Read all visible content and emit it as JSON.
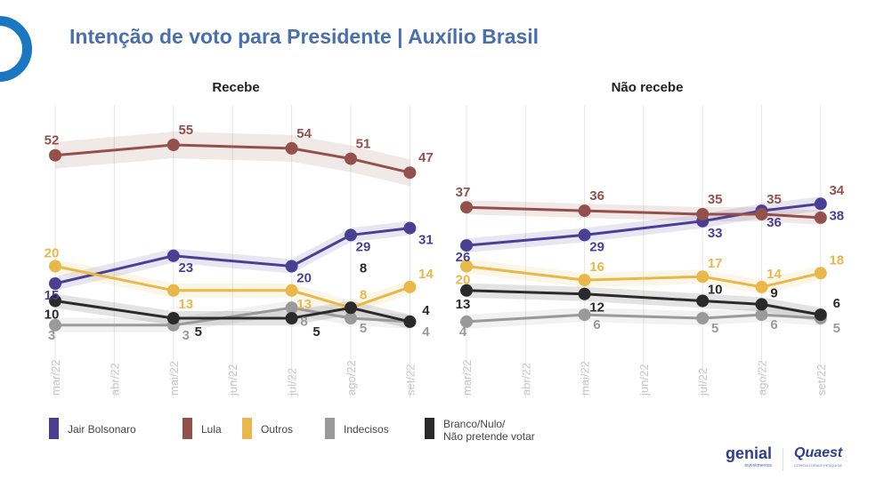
{
  "title": "Intenção de voto para Presidente | Auxílio Brasil",
  "chart_data": [
    {
      "type": "line",
      "title": "Recebe",
      "x_ticks": [
        "mar/22",
        "abr/22",
        "mai/22",
        "jun/22",
        "jul/22",
        "ago/22",
        "set/22"
      ],
      "x": [
        "mar/22",
        "mai/22",
        "jul/22",
        "ago/22",
        "set/22"
      ],
      "grid": true,
      "series": [
        {
          "name": "Jair Bolsonaro",
          "color": "#4b3f94",
          "values": [
            15,
            23,
            20,
            29,
            31
          ]
        },
        {
          "name": "Lula",
          "color": "#94514b",
          "values": [
            52,
            55,
            54,
            51,
            47
          ]
        },
        {
          "name": "Outros",
          "color": "#e8b84a",
          "values": [
            20,
            13,
            13,
            8,
            14
          ]
        },
        {
          "name": "Indecisos",
          "color": "#9a9a9a",
          "values": [
            3,
            3,
            8,
            5,
            4
          ]
        },
        {
          "name": "Branco/Nulo/ Não pretende votar",
          "color": "#2a2a2a",
          "values": [
            10,
            5,
            5,
            8,
            4
          ]
        }
      ]
    },
    {
      "type": "line",
      "title": "Não recebe",
      "x_ticks": [
        "mar/22",
        "abr/22",
        "mai/22",
        "jun/22",
        "jul/22",
        "ago/22",
        "set/22"
      ],
      "x": [
        "mar/22",
        "mai/22",
        "jul/22",
        "ago/22",
        "set/22"
      ],
      "grid": true,
      "series": [
        {
          "name": "Jair Bolsonaro",
          "color": "#4b3f94",
          "values": [
            26,
            29,
            33,
            36,
            38
          ]
        },
        {
          "name": "Lula",
          "color": "#94514b",
          "values": [
            37,
            36,
            35,
            35,
            34
          ]
        },
        {
          "name": "Outros",
          "color": "#e8b84a",
          "values": [
            20,
            16,
            17,
            14,
            18
          ]
        },
        {
          "name": "Indecisos",
          "color": "#9a9a9a",
          "values": [
            4,
            6,
            5,
            6,
            5
          ]
        },
        {
          "name": "Branco/Nulo/ Não pretende votar",
          "color": "#2a2a2a",
          "values": [
            13,
            12,
            10,
            9,
            6
          ]
        }
      ]
    }
  ],
  "legend": [
    {
      "label": "Jair Bolsonaro",
      "color": "#4b3f94"
    },
    {
      "label": "Lula",
      "color": "#94514b"
    },
    {
      "label": "Outros",
      "color": "#e8b84a"
    },
    {
      "label": "Indecisos",
      "color": "#9a9a9a"
    },
    {
      "label": "Branco/Nulo/\nNão pretende votar",
      "color": "#2a2a2a"
    }
  ],
  "logos": {
    "genial": "genial",
    "genial_sub": "investimentos",
    "quaest": "Quaest",
    "quaest_sub": "CONSULTORIA E PESQUISA"
  },
  "brand_color": "#1c77c3"
}
